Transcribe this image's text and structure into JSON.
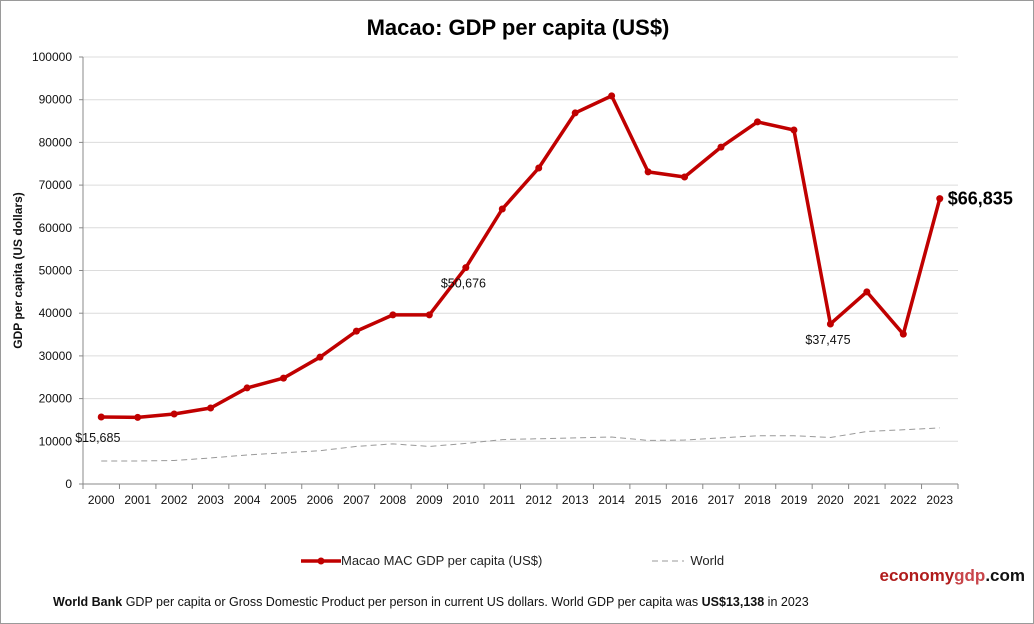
{
  "chart_data": {
    "type": "line",
    "title": "Macao: GDP per capita (US$)",
    "ylabel": "GDP per capita (US dollars)",
    "xlabel": "",
    "ylim": [
      0,
      100000
    ],
    "yticks": [
      "0",
      "10000",
      "20000",
      "30000",
      "40000",
      "50000",
      "60000",
      "70000",
      "80000",
      "90000",
      "100000"
    ],
    "grid": true,
    "legend_position": "bottom",
    "categories": [
      "2000",
      "2001",
      "2002",
      "2003",
      "2004",
      "2005",
      "2006",
      "2007",
      "2008",
      "2009",
      "2010",
      "2011",
      "2012",
      "2013",
      "2014",
      "2015",
      "2016",
      "2017",
      "2018",
      "2019",
      "2020",
      "2021",
      "2022",
      "2023"
    ],
    "series": [
      {
        "name": "Macao MAC GDP per capita (US$)",
        "color": "#c00000",
        "style": "solid-markers",
        "values": [
          15685,
          15600,
          16400,
          17800,
          22500,
          24800,
          29700,
          35800,
          39600,
          39600,
          50676,
          64400,
          74000,
          86900,
          90900,
          73100,
          71900,
          78900,
          84800,
          82900,
          37475,
          45000,
          35100,
          66835
        ]
      },
      {
        "name": "World",
        "color": "#999999",
        "style": "dashed",
        "values": [
          5400,
          5400,
          5500,
          6100,
          6800,
          7300,
          7800,
          8800,
          9400,
          8800,
          9500,
          10400,
          10600,
          10800,
          11000,
          10200,
          10300,
          10800,
          11300,
          11300,
          10900,
          12300,
          12700,
          13138
        ]
      }
    ],
    "annotations": [
      {
        "year": "2000",
        "text": "$15,685"
      },
      {
        "year": "2010",
        "text": "$50,676"
      },
      {
        "year": "2020",
        "text": "$37,475"
      },
      {
        "year": "2023",
        "text": "$66,835",
        "bold": true
      }
    ]
  },
  "brand": {
    "part1": "economy",
    "part2": "gdp",
    "part3": ".com"
  },
  "footer": {
    "source": "World Bank",
    "text1": " GDP per capita or Gross Domestic Product per person  in current US dollars.   World GDP per capita was ",
    "value": "US$13,138",
    "text2": "  in 2023"
  }
}
